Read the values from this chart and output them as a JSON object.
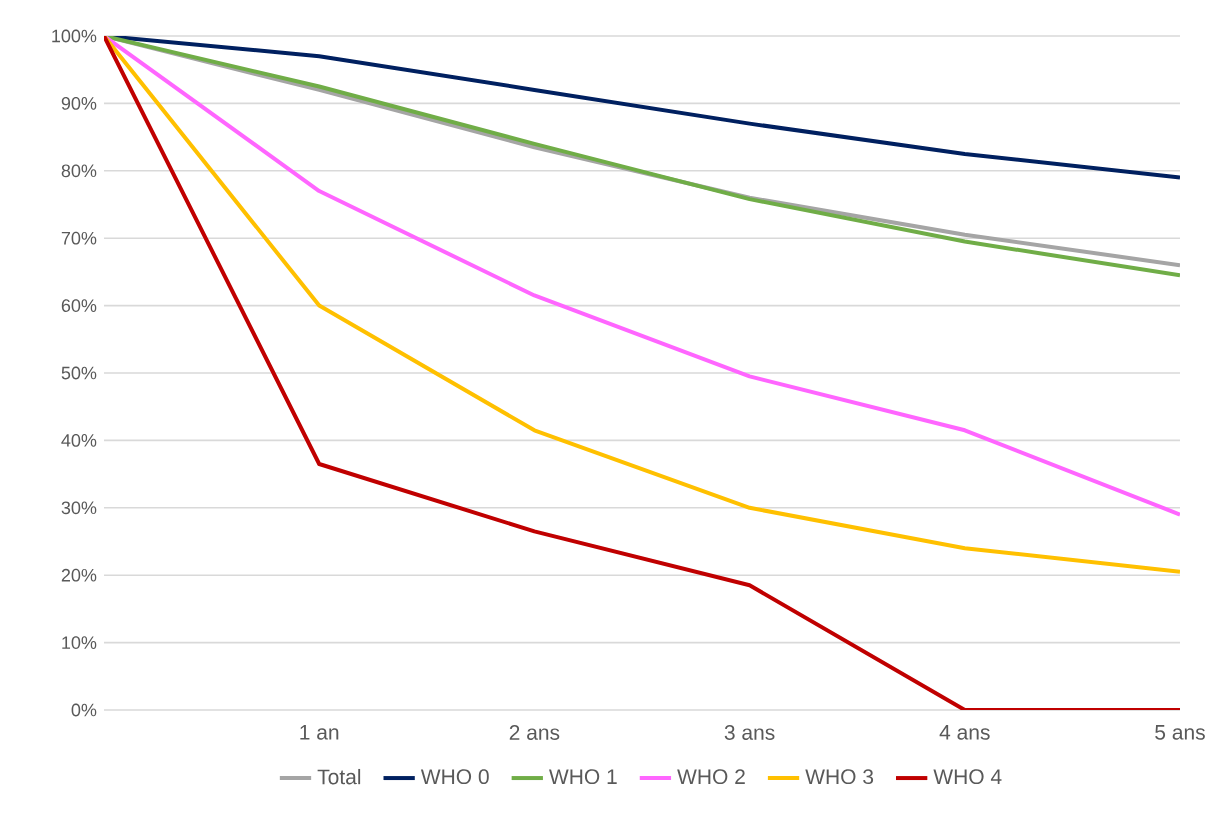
{
  "chart_data": {
    "type": "line",
    "categories": [
      null,
      "1 an",
      "2 ans",
      "3 ans",
      "4 ans",
      "5 ans"
    ],
    "ylim": [
      0,
      100
    ],
    "yticks": [
      {
        "value": 0,
        "label": "0%"
      },
      {
        "value": 10,
        "label": "10%"
      },
      {
        "value": 20,
        "label": "20%"
      },
      {
        "value": 30,
        "label": "30%"
      },
      {
        "value": 40,
        "label": "40%"
      },
      {
        "value": 50,
        "label": "50%"
      },
      {
        "value": 60,
        "label": "60%"
      },
      {
        "value": 70,
        "label": "70%"
      },
      {
        "value": 80,
        "label": "80%"
      },
      {
        "value": 90,
        "label": "90%"
      },
      {
        "value": 100,
        "label": "100%"
      }
    ],
    "grid": "y",
    "legend": "bottom",
    "series": [
      {
        "name": "Total",
        "color": "#a5a5a5",
        "values": [
          100,
          92,
          83.5,
          76,
          70.5,
          66
        ]
      },
      {
        "name": "WHO 0",
        "color": "#002060",
        "values": [
          100,
          97,
          92,
          87,
          82.5,
          79
        ]
      },
      {
        "name": "WHO 1",
        "color": "#70ad47",
        "values": [
          100,
          92.5,
          84,
          75.8,
          69.5,
          64.5
        ]
      },
      {
        "name": "WHO 2",
        "color": "#ff66ff",
        "values": [
          100,
          77,
          61.5,
          49.5,
          41.5,
          29
        ]
      },
      {
        "name": "WHO 3",
        "color": "#ffc000",
        "values": [
          100,
          60,
          41.5,
          30,
          24,
          20.5
        ]
      },
      {
        "name": "WHO 4",
        "color": "#c00000",
        "values": [
          100,
          36.5,
          26.5,
          18.5,
          0,
          0
        ]
      }
    ]
  }
}
